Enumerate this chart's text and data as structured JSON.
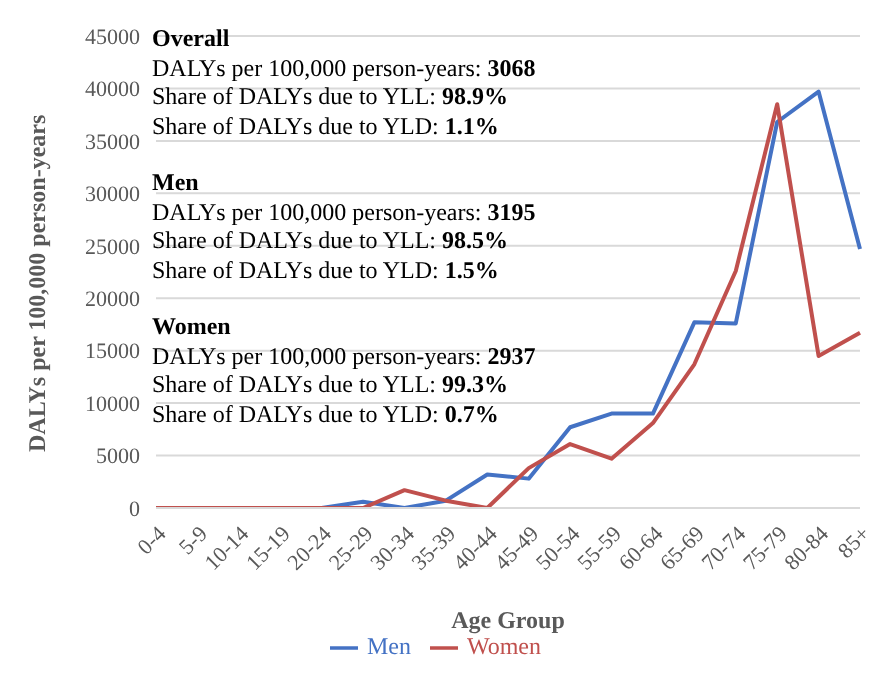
{
  "chart_data": {
    "type": "line",
    "xlabel": "Age Group",
    "ylabel": "DALYs per 100,000 person-years",
    "categories": [
      "0-4",
      "5-9",
      "10-14",
      "15-19",
      "20-24",
      "25-29",
      "30-34",
      "35-39",
      "40-44",
      "45-49",
      "50-54",
      "55-59",
      "60-64",
      "65-69",
      "70-74",
      "75-79",
      "80-84",
      "85+"
    ],
    "series": [
      {
        "name": "Men",
        "color": "#4472c4",
        "values": [
          null,
          null,
          null,
          null,
          0,
          600,
          0,
          700,
          3200,
          2800,
          7700,
          9000,
          9000,
          17700,
          17600,
          36800,
          39700,
          24700
        ]
      },
      {
        "name": "Women",
        "color": "#c0504d",
        "values": [
          0,
          0,
          0,
          0,
          0,
          0,
          1700,
          700,
          0,
          3800,
          6100,
          4700,
          8100,
          13700,
          22600,
          38500,
          14500,
          16700
        ]
      }
    ],
    "ylim": [
      0,
      45000
    ],
    "yticks": [
      0,
      5000,
      10000,
      15000,
      20000,
      25000,
      30000,
      35000,
      40000,
      45000
    ],
    "grid": "y",
    "legend": "bottom",
    "marker": "none",
    "line_style": "solid",
    "annotations": [
      "Overall",
      "DALYs per 100,000 person-years: 3068",
      "Share of DALYs due to YLL: 98.9%",
      "Share of DALYs due to YLD: 1.1%",
      "Men",
      "DALYs per 100,000 person-years: 3195",
      "Share of DALYs due to YLL: 98.5%",
      "Share of DALYs due to YLD: 1.5%",
      "Women",
      "DALYs per 100,000 person-years: 2937",
      "Share of DALYs due to YLL: 99.3%",
      "Share of DALYs due to YLD: 0.7%"
    ]
  }
}
